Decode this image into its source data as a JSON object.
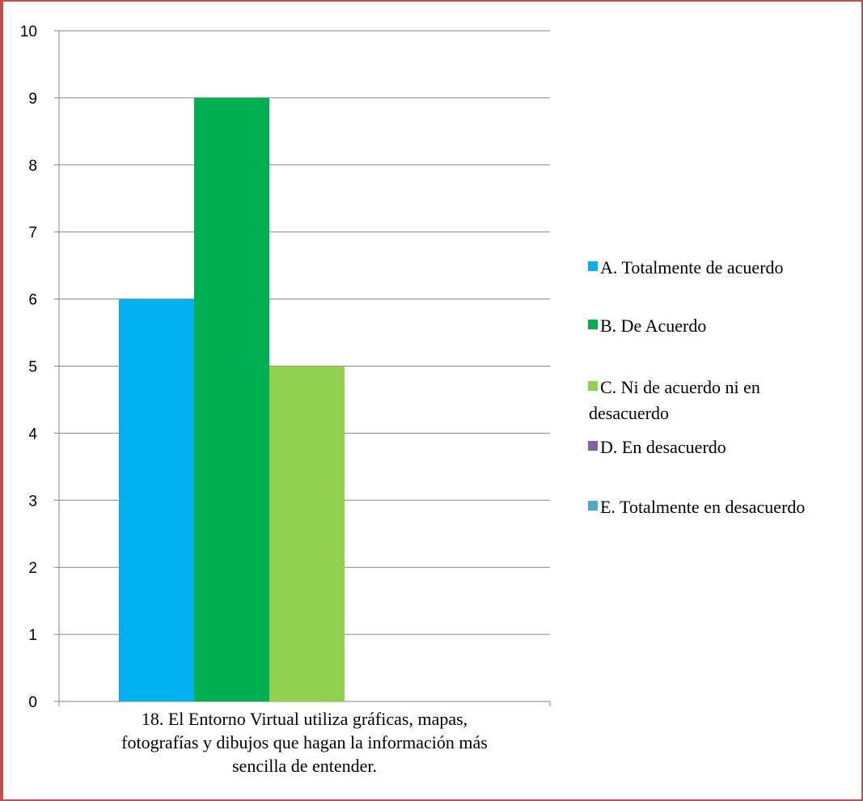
{
  "chart_data": {
    "type": "bar",
    "title": "",
    "xlabel": "",
    "ylabel": "",
    "ylim": [
      0,
      10
    ],
    "yticks": [
      0,
      1,
      2,
      3,
      4,
      5,
      6,
      7,
      8,
      9,
      10
    ],
    "grid": true,
    "legend_position": "right",
    "categories": [
      [
        "18. El Entorno Virtual utiliza gráficas, mapas,",
        "fotografías y dibujos que hagan la información más",
        "sencilla de entender."
      ]
    ],
    "series": [
      {
        "name": [
          "A. Totalmente de acuerdo"
        ],
        "values": [
          6
        ],
        "color": "#00b0f0"
      },
      {
        "name": [
          "B. De Acuerdo"
        ],
        "values": [
          9
        ],
        "color": "#00b050"
      },
      {
        "name": [
          "C. Ni de acuerdo ni en",
          "desacuerdo"
        ],
        "values": [
          5
        ],
        "color": "#92d050"
      },
      {
        "name": [
          "D. En desacuerdo"
        ],
        "values": [
          0
        ],
        "color": "#8064a2"
      },
      {
        "name": [
          "E. Totalmente en desacuerdo"
        ],
        "values": [
          0
        ],
        "color": "#4bacc6"
      }
    ]
  },
  "colors": {
    "frame": "#c0504d",
    "gridline": "#868686",
    "axis": "#868686"
  }
}
